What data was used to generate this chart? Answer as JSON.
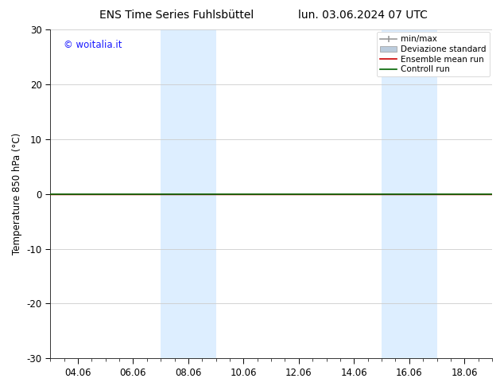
{
  "title_left": "ENS Time Series Fuhlsbüttel",
  "title_right": "lun. 03.06.2024 07 UTC",
  "ylabel": "Temperature 850 hPa (°C)",
  "ylim": [
    -30,
    30
  ],
  "yticks": [
    -30,
    -20,
    -10,
    0,
    10,
    20,
    30
  ],
  "xtick_labels": [
    "04.06",
    "06.06",
    "08.06",
    "10.06",
    "12.06",
    "14.06",
    "16.06",
    "18.06"
  ],
  "xtick_positions": [
    2.0,
    4.0,
    6.0,
    8.0,
    10.0,
    12.0,
    14.0,
    16.0
  ],
  "xlim": [
    1.0,
    17.0
  ],
  "shaded_bands": [
    {
      "start": 5.0,
      "end": 7.0
    },
    {
      "start": 13.0,
      "end": 15.0
    }
  ],
  "shaded_color": "#ddeeff",
  "ensemble_mean_color": "#cc0000",
  "control_run_color": "#006400",
  "minmax_color": "#999999",
  "std_fill_color": "#bbccdd",
  "watermark_text": "© woitalia.it",
  "watermark_color": "#1a1aff",
  "legend_labels": [
    "min/max",
    "Deviazione standard",
    "Ensemble mean run",
    "Controll run"
  ],
  "bg_color": "#ffffff",
  "fig_width": 6.34,
  "fig_height": 4.9,
  "dpi": 100
}
